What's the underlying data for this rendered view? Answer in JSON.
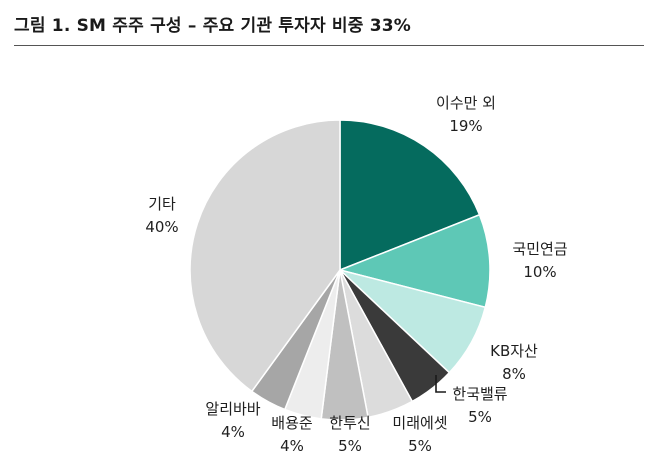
{
  "title": "그림 1. SM 주주 구성 – 주요 기관 투자자 비중 33%",
  "chart_data": {
    "type": "pie",
    "title": "그림 1. SM 주주 구성 – 주요 기관 투자자 비중 33%",
    "start_angle_deg": 0,
    "direction": "clockwise",
    "slices": [
      {
        "label": "이수만 외",
        "value": 19,
        "value_text": "19%",
        "color": "#056b5e"
      },
      {
        "label": "국민연금",
        "value": 10,
        "value_text": "10%",
        "color": "#5ec8b6"
      },
      {
        "label": "KB자산",
        "value": 8,
        "value_text": "8%",
        "color": "#bde9e2"
      },
      {
        "label": "한국밸류",
        "value": 5,
        "value_text": "5%",
        "color": "#3a3a3a"
      },
      {
        "label": "미래에셋",
        "value": 5,
        "value_text": "5%",
        "color": "#dcdcdc"
      },
      {
        "label": "한투신",
        "value": 5,
        "value_text": "5%",
        "color": "#c0c0c0"
      },
      {
        "label": "배용준",
        "value": 4,
        "value_text": "4%",
        "color": "#ededed"
      },
      {
        "label": "알리바바",
        "value": 4,
        "value_text": "4%",
        "color": "#a6a6a6"
      },
      {
        "label": "기타",
        "value": 40,
        "value_text": "40%",
        "color": "#d7d7d7"
      }
    ]
  }
}
